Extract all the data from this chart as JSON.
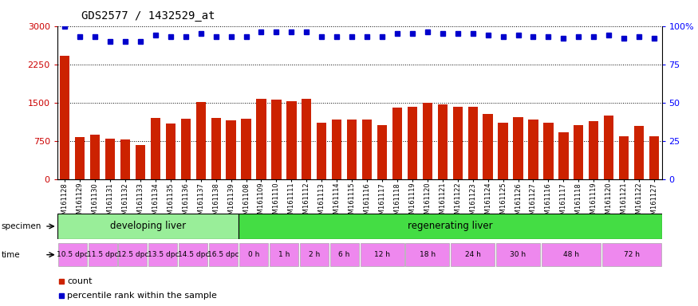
{
  "title": "GDS2577 / 1432529_at",
  "bar_values": [
    2420,
    820,
    870,
    790,
    780,
    660,
    1200,
    1090,
    1180,
    1510,
    1200,
    1150,
    1180,
    1580,
    1560,
    1530,
    1580,
    1100,
    1170,
    1170,
    1160,
    1050,
    1400,
    1420,
    1500,
    1460,
    1420,
    1420,
    1270,
    1100,
    1220,
    1160,
    1100,
    920,
    1060,
    1140,
    1250,
    840,
    1040,
    840
  ],
  "pct_values": [
    100,
    93,
    93,
    90,
    90,
    90,
    94,
    93,
    93,
    95,
    93,
    93,
    93,
    96,
    96,
    96,
    96,
    93,
    93,
    93,
    93,
    93,
    95,
    95,
    96,
    95,
    95,
    95,
    94,
    93,
    94,
    93,
    93,
    92,
    93,
    93,
    94,
    92,
    93,
    92
  ],
  "gsm_labels": [
    "GSM161128",
    "GSM161129",
    "GSM161130",
    "GSM161131",
    "GSM161132",
    "GSM161133",
    "GSM161134",
    "GSM161135",
    "GSM161136",
    "GSM161137",
    "GSM161138",
    "GSM161139",
    "GSM161108",
    "GSM161109",
    "GSM161110",
    "GSM161111",
    "GSM161112",
    "GSM161113",
    "GSM161114",
    "GSM161115",
    "GSM161116",
    "GSM161117",
    "GSM161118",
    "GSM161119",
    "GSM161120",
    "GSM161121",
    "GSM161122",
    "GSM161123",
    "GSM161124",
    "GSM161125",
    "GSM161126",
    "GSM161127",
    "GSM161116",
    "GSM161117",
    "GSM161118",
    "GSM161119",
    "GSM161120",
    "GSM161121",
    "GSM161122",
    "GSM161127"
  ],
  "bar_color": "#cc2200",
  "dot_color": "#0000cc",
  "yticks_left": [
    0,
    750,
    1500,
    2250,
    3000
  ],
  "yticks_right": [
    0,
    25,
    50,
    75,
    100
  ],
  "dev_n": 12,
  "dev_color": "#99ee99",
  "regen_color": "#44dd44",
  "dpc_color": "#ee88ee",
  "h_color": "#ee88ee",
  "time_labels": [
    {
      "text": "10.5 dpc",
      "start": 0,
      "end": 2,
      "is_dpc": true
    },
    {
      "text": "11.5 dpc",
      "start": 2,
      "end": 4,
      "is_dpc": true
    },
    {
      "text": "12.5 dpc",
      "start": 4,
      "end": 6,
      "is_dpc": true
    },
    {
      "text": "13.5 dpc",
      "start": 6,
      "end": 8,
      "is_dpc": true
    },
    {
      "text": "14.5 dpc",
      "start": 8,
      "end": 10,
      "is_dpc": true
    },
    {
      "text": "16.5 dpc",
      "start": 10,
      "end": 12,
      "is_dpc": true
    },
    {
      "text": "0 h",
      "start": 12,
      "end": 14,
      "is_dpc": false
    },
    {
      "text": "1 h",
      "start": 14,
      "end": 16,
      "is_dpc": false
    },
    {
      "text": "2 h",
      "start": 16,
      "end": 18,
      "is_dpc": false
    },
    {
      "text": "6 h",
      "start": 18,
      "end": 20,
      "is_dpc": false
    },
    {
      "text": "12 h",
      "start": 20,
      "end": 23,
      "is_dpc": false
    },
    {
      "text": "18 h",
      "start": 23,
      "end": 26,
      "is_dpc": false
    },
    {
      "text": "24 h",
      "start": 26,
      "end": 29,
      "is_dpc": false
    },
    {
      "text": "30 h",
      "start": 29,
      "end": 32,
      "is_dpc": false
    },
    {
      "text": "48 h",
      "start": 32,
      "end": 36,
      "is_dpc": false
    },
    {
      "text": "72 h",
      "start": 36,
      "end": 40,
      "is_dpc": false
    }
  ]
}
